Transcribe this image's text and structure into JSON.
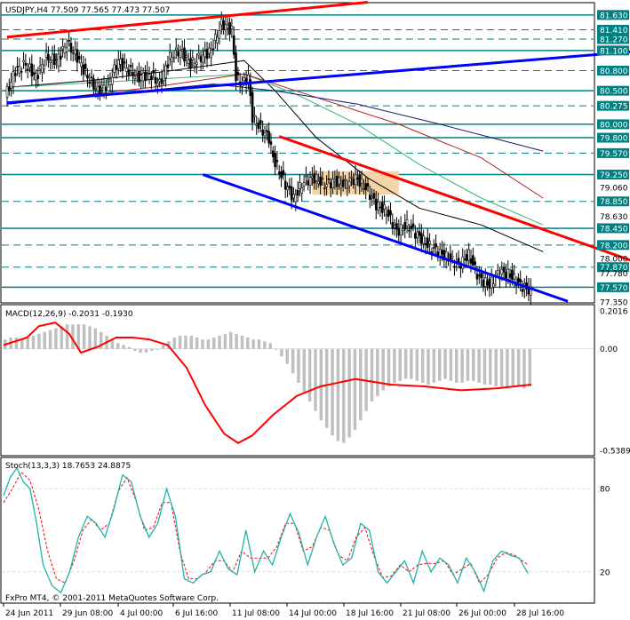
{
  "chart_data": [
    {
      "type": "candlestick",
      "header": "USDJPY,H4  77.509 77.565 77.473 77.507",
      "instrument": "USDJPY",
      "timeframe": "H4",
      "ohlc_last": {
        "open": 77.509,
        "high": 77.565,
        "low": 77.473,
        "close": 77.507
      },
      "ylim": [
        77.35,
        81.8
      ],
      "price_labels": [
        "81.630",
        "81.410",
        "81.270",
        "81.100",
        "80.800",
        "80.500",
        "80.275",
        "80.000",
        "79.800",
        "79.570",
        "79.250",
        "79.060",
        "78.850",
        "78.630",
        "78.450",
        "78.200",
        "78.000",
        "77.870",
        "77.780",
        "77.570",
        "77.350"
      ],
      "level_lines": [
        81.63,
        81.41,
        81.27,
        81.1,
        80.8,
        80.5,
        80.275,
        80.0,
        79.8,
        79.57,
        79.25,
        78.85,
        78.45,
        78.2,
        77.87,
        77.57
      ],
      "current_price": 77.507,
      "close_path": [
        [
          0,
          80.4
        ],
        [
          5,
          80.8
        ],
        [
          10,
          80.9
        ],
        [
          15,
          80.7
        ],
        [
          20,
          81.0
        ],
        [
          25,
          80.95
        ],
        [
          30,
          81.2
        ],
        [
          35,
          81.0
        ],
        [
          40,
          80.7
        ],
        [
          45,
          80.5
        ],
        [
          50,
          80.6
        ],
        [
          55,
          80.95
        ],
        [
          60,
          80.8
        ],
        [
          65,
          80.7
        ],
        [
          70,
          80.75
        ],
        [
          75,
          80.6
        ],
        [
          80,
          81.0
        ],
        [
          85,
          81.1
        ],
        [
          90,
          80.9
        ],
        [
          95,
          81.0
        ],
        [
          100,
          81.1
        ],
        [
          105,
          81.5
        ],
        [
          110,
          81.4
        ],
        [
          112,
          80.7
        ],
        [
          115,
          80.6
        ],
        [
          118,
          80.7
        ],
        [
          120,
          80.1
        ],
        [
          125,
          79.9
        ],
        [
          128,
          79.8
        ],
        [
          130,
          79.5
        ],
        [
          133,
          79.3
        ],
        [
          136,
          79.1
        ],
        [
          140,
          78.9
        ],
        [
          142,
          79.0
        ],
        [
          145,
          79.15
        ],
        [
          150,
          79.2
        ],
        [
          155,
          79.1
        ],
        [
          160,
          79.15
        ],
        [
          165,
          79.1
        ],
        [
          170,
          79.2
        ],
        [
          175,
          79.05
        ],
        [
          180,
          78.8
        ],
        [
          185,
          78.7
        ],
        [
          190,
          78.4
        ],
        [
          195,
          78.5
        ],
        [
          200,
          78.35
        ],
        [
          205,
          78.2
        ],
        [
          210,
          78.1
        ],
        [
          215,
          78.0
        ],
        [
          220,
          77.9
        ],
        [
          225,
          78.05
        ],
        [
          230,
          77.7
        ],
        [
          235,
          77.6
        ],
        [
          240,
          77.8
        ],
        [
          245,
          77.75
        ],
        [
          250,
          77.6
        ],
        [
          255,
          77.51
        ]
      ],
      "trendlines": [
        {
          "color": "#ff0000",
          "from": [
            0,
            81.3
          ],
          "to": [
            175,
            81.82
          ]
        },
        {
          "color": "#0000ff",
          "from": [
            0,
            80.32
          ],
          "to": [
            310,
            81.1
          ]
        },
        {
          "color": "#ff0000",
          "from": [
            132,
            79.82
          ],
          "to": [
            310,
            77.89
          ]
        },
        {
          "color": "#0000ff",
          "from": [
            95,
            79.25
          ],
          "to": [
            272,
            77.36
          ]
        }
      ],
      "box": {
        "from": [
          148,
          79.3
        ],
        "to": [
          190,
          78.95
        ],
        "color": "#f5d5a8"
      },
      "moving_averages": [
        {
          "color": "#000000",
          "points": [
            [
              0,
              80.55
            ],
            [
              40,
              80.65
            ],
            [
              80,
              80.8
            ],
            [
              115,
              80.95
            ],
            [
              130,
              80.5
            ],
            [
              150,
              79.8
            ],
            [
              175,
              79.2
            ],
            [
              200,
              78.75
            ],
            [
              230,
              78.5
            ],
            [
              260,
              78.1
            ]
          ]
        },
        {
          "color": "#3cb371",
          "points": [
            [
              0,
              80.55
            ],
            [
              60,
              80.65
            ],
            [
              115,
              80.75
            ],
            [
              140,
              80.45
            ],
            [
              170,
              80.0
            ],
            [
              200,
              79.4
            ],
            [
              230,
              78.9
            ],
            [
              260,
              78.5
            ]
          ]
        },
        {
          "color": "#b22222",
          "points": [
            [
              0,
              80.3
            ],
            [
              70,
              80.55
            ],
            [
              115,
              80.75
            ],
            [
              150,
              80.4
            ],
            [
              190,
              80.0
            ],
            [
              230,
              79.5
            ],
            [
              260,
              78.9
            ]
          ]
        },
        {
          "color": "#191970",
          "points": [
            [
              0,
              80.3
            ],
            [
              100,
              80.6
            ],
            [
              130,
              80.5
            ],
            [
              170,
              80.3
            ],
            [
              210,
              80.0
            ],
            [
              260,
              79.6
            ]
          ]
        }
      ]
    },
    {
      "type": "macd",
      "title": "MACD(12,26,9) -0.2031 -0.1930",
      "ylim": [
        -0.5389,
        0.2016
      ],
      "tick_labels": [
        "0.2016",
        "0.00",
        "-0.5389"
      ],
      "histogram": [
        0.05,
        0.06,
        0.06,
        0.05,
        0.06,
        0.07,
        0.08,
        0.09,
        0.1,
        0.11,
        0.12,
        0.13,
        0.13,
        0.13,
        0.13,
        0.12,
        0.11,
        0.09,
        0.07,
        0.05,
        0.03,
        0.02,
        0.01,
        -0.01,
        -0.02,
        -0.02,
        -0.01,
        0.0,
        0.02,
        0.04,
        0.06,
        0.07,
        0.07,
        0.07,
        0.06,
        0.05,
        0.05,
        0.06,
        0.07,
        0.08,
        0.09,
        0.08,
        0.07,
        0.06,
        0.05,
        0.05,
        0.04,
        0.03,
        0.0,
        -0.04,
        -0.08,
        -0.13,
        -0.18,
        -0.23,
        -0.28,
        -0.33,
        -0.38,
        -0.42,
        -0.46,
        -0.49,
        -0.5,
        -0.47,
        -0.43,
        -0.38,
        -0.33,
        -0.28,
        -0.25,
        -0.22,
        -0.2,
        -0.18,
        -0.17,
        -0.16,
        -0.16,
        -0.17,
        -0.18,
        -0.19,
        -0.18,
        -0.17,
        -0.16,
        -0.17,
        -0.18,
        -0.18,
        -0.17,
        -0.17,
        -0.18,
        -0.19,
        -0.19,
        -0.2,
        -0.2,
        -0.21,
        -0.2,
        -0.2,
        -0.21,
        -0.2
      ],
      "signal": [
        [
          0,
          0.02
        ],
        [
          10,
          0.06
        ],
        [
          15,
          0.12
        ],
        [
          22,
          0.14
        ],
        [
          28,
          0.08
        ],
        [
          33,
          -0.02
        ],
        [
          40,
          0.01
        ],
        [
          48,
          0.06
        ],
        [
          55,
          0.06
        ],
        [
          62,
          0.05
        ],
        [
          70,
          0.02
        ],
        [
          78,
          -0.1
        ],
        [
          86,
          -0.3
        ],
        [
          94,
          -0.45
        ],
        [
          100,
          -0.5
        ],
        [
          106,
          -0.46
        ],
        [
          115,
          -0.35
        ],
        [
          125,
          -0.25
        ],
        [
          135,
          -0.2
        ],
        [
          150,
          -0.16
        ],
        [
          165,
          -0.19
        ],
        [
          180,
          -0.2
        ],
        [
          195,
          -0.22
        ],
        [
          210,
          -0.21
        ],
        [
          225,
          -0.19
        ]
      ]
    },
    {
      "type": "stochastic",
      "title": "Stoch(13,3,3) 18.7653 24.8875",
      "ylim": [
        0,
        100
      ],
      "tick_labels": [
        "80",
        "20"
      ],
      "levels": [
        80,
        20
      ],
      "main": [
        [
          0,
          75
        ],
        [
          3,
          88
        ],
        [
          6,
          95
        ],
        [
          9,
          85
        ],
        [
          12,
          80
        ],
        [
          15,
          55
        ],
        [
          18,
          25
        ],
        [
          22,
          10
        ],
        [
          26,
          5
        ],
        [
          30,
          20
        ],
        [
          34,
          45
        ],
        [
          38,
          60
        ],
        [
          42,
          55
        ],
        [
          46,
          45
        ],
        [
          50,
          65
        ],
        [
          54,
          90
        ],
        [
          58,
          85
        ],
        [
          62,
          60
        ],
        [
          66,
          45
        ],
        [
          70,
          55
        ],
        [
          74,
          80
        ],
        [
          78,
          60
        ],
        [
          82,
          15
        ],
        [
          86,
          12
        ],
        [
          90,
          18
        ],
        [
          94,
          20
        ],
        [
          98,
          35
        ],
        [
          102,
          22
        ],
        [
          106,
          18
        ],
        [
          110,
          50
        ],
        [
          114,
          20
        ],
        [
          118,
          35
        ],
        [
          122,
          25
        ],
        [
          126,
          45
        ],
        [
          130,
          62
        ],
        [
          134,
          48
        ],
        [
          138,
          25
        ],
        [
          142,
          45
        ],
        [
          146,
          60
        ],
        [
          150,
          40
        ],
        [
          154,
          25
        ],
        [
          158,
          30
        ],
        [
          162,
          55
        ],
        [
          166,
          50
        ],
        [
          170,
          20
        ],
        [
          174,
          12
        ],
        [
          178,
          20
        ],
        [
          182,
          28
        ],
        [
          186,
          12
        ],
        [
          190,
          35
        ],
        [
          194,
          20
        ],
        [
          198,
          30
        ],
        [
          202,
          25
        ],
        [
          206,
          12
        ],
        [
          210,
          30
        ],
        [
          214,
          20
        ],
        [
          218,
          6
        ],
        [
          222,
          28
        ],
        [
          226,
          35
        ],
        [
          230,
          32
        ],
        [
          234,
          30
        ],
        [
          238,
          19
        ]
      ],
      "signal": [
        [
          0,
          70
        ],
        [
          4,
          80
        ],
        [
          8,
          92
        ],
        [
          12,
          86
        ],
        [
          16,
          65
        ],
        [
          20,
          35
        ],
        [
          24,
          15
        ],
        [
          28,
          12
        ],
        [
          32,
          28
        ],
        [
          36,
          50
        ],
        [
          40,
          58
        ],
        [
          44,
          50
        ],
        [
          48,
          55
        ],
        [
          52,
          78
        ],
        [
          56,
          88
        ],
        [
          60,
          72
        ],
        [
          64,
          50
        ],
        [
          68,
          52
        ],
        [
          72,
          70
        ],
        [
          76,
          70
        ],
        [
          80,
          35
        ],
        [
          84,
          15
        ],
        [
          88,
          15
        ],
        [
          92,
          20
        ],
        [
          96,
          28
        ],
        [
          100,
          28
        ],
        [
          104,
          20
        ],
        [
          108,
          35
        ],
        [
          112,
          30
        ],
        [
          116,
          30
        ],
        [
          120,
          30
        ],
        [
          124,
          38
        ],
        [
          128,
          55
        ],
        [
          132,
          55
        ],
        [
          136,
          35
        ],
        [
          140,
          38
        ],
        [
          144,
          52
        ],
        [
          148,
          50
        ],
        [
          152,
          32
        ],
        [
          156,
          28
        ],
        [
          160,
          45
        ],
        [
          164,
          52
        ],
        [
          168,
          32
        ],
        [
          172,
          16
        ],
        [
          176,
          17
        ],
        [
          180,
          25
        ],
        [
          184,
          20
        ],
        [
          188,
          25
        ],
        [
          192,
          26
        ],
        [
          196,
          26
        ],
        [
          200,
          28
        ],
        [
          204,
          18
        ],
        [
          208,
          22
        ],
        [
          212,
          26
        ],
        [
          216,
          12
        ],
        [
          220,
          18
        ],
        [
          224,
          30
        ],
        [
          228,
          34
        ],
        [
          232,
          32
        ],
        [
          238,
          25
        ]
      ]
    }
  ],
  "x_axis_labels": [
    "24 Jun 2011",
    "29 Jun 08:00",
    "4 Jul 00:00",
    "6 Jul 16:00",
    "11 Jul 08:00",
    "14 Jul 00:00",
    "18 Jul 16:00",
    "21 Jul 08:00",
    "26 Jul 00:00",
    "28 Jul 16:00"
  ],
  "copyright": "FxPro MT4, © 2001-2011 MetaQuotes Software Corp.",
  "colors": {
    "level_line": "#008080",
    "macd_histogram": "#c0c0c0",
    "macd_signal": "#ff0000",
    "stoch_main": "#20b2aa",
    "stoch_signal": "#ff0000",
    "candles": "#000000",
    "current_price_tag": "#000000"
  }
}
